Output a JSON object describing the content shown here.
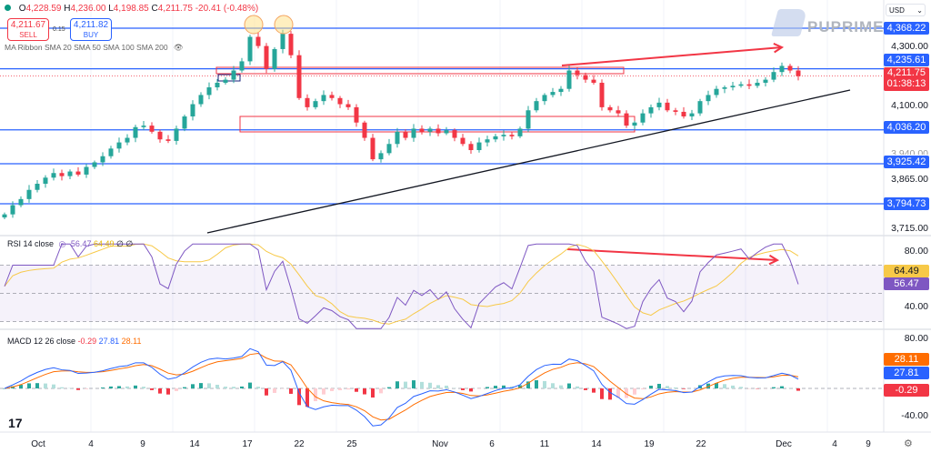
{
  "ohlc": {
    "open": "4,228.59",
    "high": "4,236.00",
    "low": "4,198.85",
    "close": "4,211.75",
    "change": "-20.41 (-0.48%)",
    "o": "O",
    "h": "H",
    "l": "L",
    "c": "C"
  },
  "trade": {
    "sell_price": "4,211.67",
    "sell_label": "SELL",
    "spread": "0.15",
    "buy_price": "4,211.82",
    "buy_label": "BUY"
  },
  "indicator_ma": "MA Ribbon SMA 20 SMA 50 SMA 100 SMA 200",
  "brand": "PUPRIME",
  "currency": "USD",
  "rsi": {
    "label": "RSI 14 close",
    "value": "56.47",
    "ma": "64.49",
    "extra": "∅ ∅"
  },
  "macd": {
    "label": "MACD 12 26 close",
    "hist": "-0.29",
    "macd": "27.81",
    "signal": "28.11"
  },
  "price_axis": [
    "4,300.00",
    "4,100.00",
    "3,940.00",
    "3,865.00",
    "3,715.00"
  ],
  "level_tags": [
    "4,368.22",
    "4,235.61",
    "4,036.20",
    "3,925.42",
    "3,794.73"
  ],
  "current_price": {
    "value": "4,211.75",
    "countdown": "01:38:13"
  },
  "rsi_axis": [
    "80.00",
    "40.00"
  ],
  "rsi_tags": [
    "64.49",
    "56.47"
  ],
  "macd_axis": [
    "80.00",
    "-40.00"
  ],
  "macd_tags": [
    "28.11",
    "27.81",
    "-0.29"
  ],
  "time_axis": [
    "Oct",
    "4",
    "9",
    "14",
    "17",
    "22",
    "25",
    "Nov",
    "6",
    "11",
    "14",
    "19",
    "22",
    "Dec",
    "4",
    "9"
  ],
  "colors": {
    "up": "#26a69a",
    "down": "#f23645",
    "level": "#2962ff",
    "rsi": "#7e57c2",
    "rsi_ma": "#f7c948",
    "macd": "#2962ff",
    "signal": "#ff6d00",
    "annotation": "#f23645"
  },
  "chart_data": {
    "type": "candlestick",
    "levels": [
      4368.22,
      4235.61,
      4036.2,
      3925.42,
      3794.73
    ],
    "ylim": [
      3700,
      4400
    ],
    "closes": [
      3760,
      3790,
      3810,
      3840,
      3860,
      3880,
      3895,
      3885,
      3900,
      3890,
      3915,
      3930,
      3950,
      3975,
      3995,
      4010,
      4045,
      4050,
      4030,
      4005,
      4000,
      4040,
      4080,
      4120,
      4150,
      4175,
      4190,
      4200,
      4230,
      4260,
      4340,
      4310,
      4235,
      4300,
      4350,
      4280,
      4140,
      4110,
      4130,
      4150,
      4140,
      4120,
      4110,
      4060,
      4010,
      3940,
      3960,
      3990,
      4030,
      4010,
      4040,
      4030,
      4040,
      4025,
      4035,
      4010,
      3990,
      3970,
      3995,
      4005,
      4015,
      4020,
      4015,
      4040,
      4100,
      4130,
      4150,
      4160,
      4170,
      4230,
      4215,
      4200,
      4190,
      4110,
      4100,
      4090,
      4050,
      4060,
      4090,
      4110,
      4125,
      4100,
      4095,
      4080,
      4090,
      4130,
      4150,
      4170,
      4175,
      4180,
      4185,
      4180,
      4190,
      4200,
      4225,
      4245,
      4230,
      4211.75
    ],
    "rsi_ylim": [
      20,
      90
    ],
    "macd_ylim": [
      -55,
      85
    ]
  }
}
